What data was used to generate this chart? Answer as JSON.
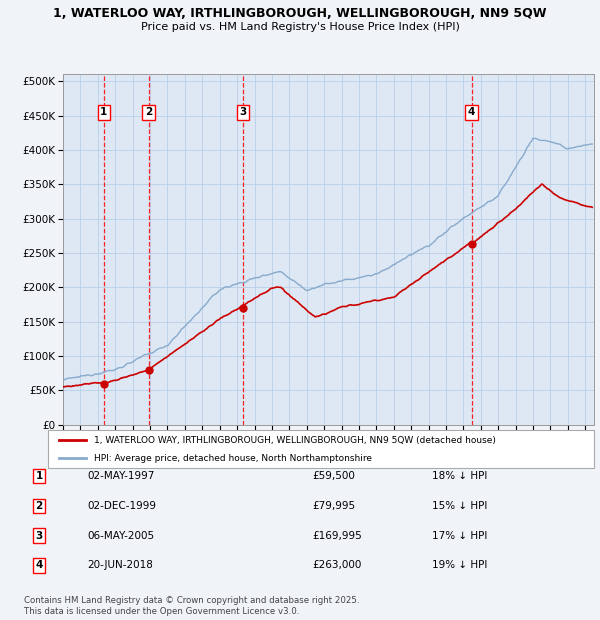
{
  "title_line1": "1, WATERLOO WAY, IRTHLINGBOROUGH, WELLINGBOROUGH, NN9 5QW",
  "title_line2": "Price paid vs. HM Land Registry's House Price Index (HPI)",
  "bg_color": "#f0f4f8",
  "plot_bg_color": "#dde8f4",
  "grid_color": "#b8cfe8",
  "red_line_color": "#cc0000",
  "blue_line_color": "#88aacc",
  "transactions": [
    {
      "num": 1,
      "date": "02-MAY-1997",
      "price": 59500,
      "hpi_pct": "18% ↓ HPI",
      "year": 1997.34
    },
    {
      "num": 2,
      "date": "02-DEC-1999",
      "price": 79995,
      "hpi_pct": "15% ↓ HPI",
      "year": 1999.92
    },
    {
      "num": 3,
      "date": "06-MAY-2005",
      "price": 169995,
      "hpi_pct": "17% ↓ HPI",
      "year": 2005.34
    },
    {
      "num": 4,
      "date": "20-JUN-2018",
      "price": 263000,
      "hpi_pct": "19% ↓ HPI",
      "year": 2018.47
    }
  ],
  "legend_entries": [
    "1, WATERLOO WAY, IRTHLINGBOROUGH, WELLINGBOROUGH, NN9 5QW (detached house)",
    "HPI: Average price, detached house, North Northamptonshire"
  ],
  "footnote": "Contains HM Land Registry data © Crown copyright and database right 2025.\nThis data is licensed under the Open Government Licence v3.0.",
  "ylim_max": 500000,
  "xlim_start": 1995.0,
  "xlim_end": 2025.5
}
